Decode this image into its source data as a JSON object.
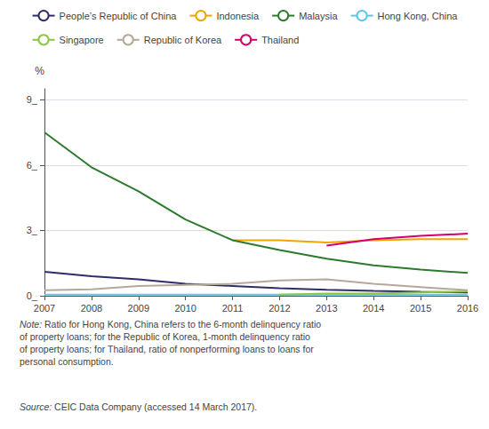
{
  "chart_data": {
    "type": "line",
    "x": [
      2007,
      2008,
      2009,
      2010,
      2011,
      2012,
      2013,
      2014,
      2015,
      2016
    ],
    "series": [
      {
        "name": "People’s Republic of China",
        "color": "#2e2d6b",
        "values": [
          1.1,
          0.9,
          0.75,
          0.55,
          0.45,
          0.35,
          0.28,
          0.22,
          0.18,
          0.15
        ]
      },
      {
        "name": "Indonesia",
        "color": "#f0a500",
        "values": [
          null,
          null,
          null,
          null,
          2.55,
          2.55,
          2.45,
          2.55,
          2.6,
          2.6
        ]
      },
      {
        "name": "Malaysia",
        "color": "#2d7a2d",
        "values": [
          7.5,
          5.9,
          4.8,
          3.5,
          2.55,
          2.1,
          1.7,
          1.4,
          1.2,
          1.05
        ]
      },
      {
        "name": "Hong Kong, China",
        "color": "#5bc8e8",
        "values": [
          0.05,
          0.05,
          0.05,
          0.05,
          0.05,
          0.05,
          0.05,
          0.05,
          0.05,
          0.05
        ]
      },
      {
        "name": "Singapore",
        "color": "#8dc63f",
        "values": [
          null,
          null,
          null,
          null,
          null,
          0.05,
          0.1,
          0.1,
          0.15,
          0.2
        ]
      },
      {
        "name": "Republic of Korea",
        "color": "#b5a89a",
        "values": [
          0.25,
          0.3,
          0.45,
          0.5,
          0.55,
          0.7,
          0.75,
          0.55,
          0.4,
          0.25
        ]
      },
      {
        "name": "Thailand",
        "color": "#d4006e",
        "values": [
          null,
          null,
          null,
          null,
          null,
          null,
          2.3,
          2.6,
          2.75,
          2.85
        ]
      }
    ],
    "xlim": [
      2007,
      2016
    ],
    "xticks": [
      2007,
      2008,
      2009,
      2010,
      2011,
      2012,
      2013,
      2014,
      2015,
      2016
    ],
    "ylim": [
      0,
      9.5
    ],
    "yticks": [
      {
        "value": 0,
        "label": "0_"
      },
      {
        "value": 3,
        "label": "3_"
      },
      {
        "value": 6,
        "label": "6_"
      },
      {
        "value": 9,
        "label": "9_"
      }
    ],
    "ylabel": "%",
    "grid": true,
    "legend": "top",
    "annotations": [
      {
        "lead": "Note:",
        "text": "Ratio for Hong Kong, China refers to the 6-month delinquency ratio\nof property loans; for the Republic of Korea, 1-month delinquency ratio\nof property loans; for Thailand, ratio of nonperforming loans to loans for\npersonal consumption."
      },
      {
        "lead": "Source:",
        "text": "CEIC Data Company (accessed 14 March 2017)."
      }
    ]
  }
}
